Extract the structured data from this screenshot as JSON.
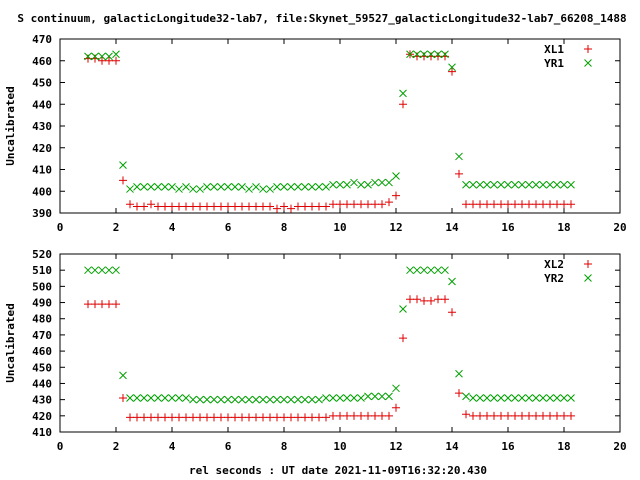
{
  "title": "S continuum, galacticLongitude32-lab7, file:Skynet_59527_galacticLongitude32-lab7_66208_1488",
  "xlabel": "rel seconds : UT date 2021-11-09T16:32:20.430",
  "colors": {
    "red": "#e00000",
    "green": "#00a000"
  },
  "chart_data": [
    {
      "type": "scatter",
      "ylabel": "Uncalibrated",
      "xlim": [
        0,
        20
      ],
      "ylim": [
        390,
        470
      ],
      "xticks": [
        0,
        2,
        4,
        6,
        8,
        10,
        12,
        14,
        16,
        18,
        20
      ],
      "yticks": [
        390,
        400,
        410,
        420,
        430,
        440,
        450,
        460,
        470
      ],
      "legend_position": "top-right",
      "series": [
        {
          "name": "XL1",
          "marker": "plus",
          "color": "#e00000",
          "x": [
            1.0,
            1.25,
            1.5,
            1.75,
            2.0,
            2.25,
            2.5,
            2.75,
            3.0,
            3.25,
            3.5,
            3.75,
            4.0,
            4.25,
            4.5,
            4.75,
            5.0,
            5.25,
            5.5,
            5.75,
            6.0,
            6.25,
            6.5,
            6.75,
            7.0,
            7.25,
            7.5,
            7.75,
            8.0,
            8.25,
            8.5,
            8.75,
            9.0,
            9.25,
            9.5,
            9.75,
            10.0,
            10.25,
            10.5,
            10.75,
            11.0,
            11.25,
            11.5,
            11.75,
            12.0,
            12.25,
            12.5,
            12.75,
            13.0,
            13.25,
            13.5,
            13.75,
            14.0,
            14.25,
            14.5,
            14.75,
            15.0,
            15.25,
            15.5,
            15.75,
            16.0,
            16.25,
            16.5,
            16.75,
            17.0,
            17.25,
            17.5,
            17.75,
            18.0,
            18.25
          ],
          "y": [
            461,
            461,
            460,
            460,
            460,
            405,
            394,
            393,
            393,
            394,
            393,
            393,
            393,
            393,
            393,
            393,
            393,
            393,
            393,
            393,
            393,
            393,
            393,
            393,
            393,
            393,
            393,
            392,
            393,
            392,
            393,
            393,
            393,
            393,
            393,
            394,
            394,
            394,
            394,
            394,
            394,
            394,
            394,
            395,
            398,
            440,
            463,
            462,
            462,
            462,
            462,
            462,
            455,
            408,
            394,
            394,
            394,
            394,
            394,
            394,
            394,
            394,
            394,
            394,
            394,
            394,
            394,
            394,
            394,
            394
          ],
          "y_fixed": [
            461,
            461,
            460,
            460,
            460,
            405,
            394,
            393,
            393,
            394,
            393,
            393,
            393,
            393,
            393,
            393,
            393,
            393,
            393,
            393,
            393,
            393,
            393,
            393,
            393,
            393,
            393,
            392,
            393,
            392,
            393,
            393,
            393,
            393,
            393,
            394,
            394,
            394,
            394,
            394,
            394,
            394,
            394,
            395,
            398,
            440,
            463,
            462,
            462,
            462,
            462,
            462,
            455,
            408,
            394,
            394,
            394,
            394,
            394,
            394,
            394,
            394,
            394,
            394,
            394,
            394,
            394,
            394,
            394,
            394
          ]
        },
        {
          "name": "YR1",
          "marker": "cross",
          "color": "#00a000",
          "x": [
            1.0,
            1.25,
            1.5,
            1.75,
            2.0,
            2.25,
            2.5,
            2.75,
            3.0,
            3.25,
            3.5,
            3.75,
            4.0,
            4.25,
            4.5,
            4.75,
            5.0,
            5.25,
            5.5,
            5.75,
            6.0,
            6.25,
            6.5,
            6.75,
            7.0,
            7.25,
            7.5,
            7.75,
            8.0,
            8.25,
            8.5,
            8.75,
            9.0,
            9.25,
            9.5,
            9.75,
            10.0,
            10.25,
            10.5,
            10.75,
            11.0,
            11.25,
            11.5,
            11.75,
            12.0,
            12.25,
            12.5,
            12.75,
            13.0,
            13.25,
            13.5,
            13.75,
            14.0,
            14.25,
            14.5,
            14.75,
            15.0,
            15.25,
            15.5,
            15.75,
            16.0,
            16.25,
            16.5,
            16.75,
            17.0,
            17.25,
            17.5,
            17.75,
            18.0,
            18.25
          ],
          "y": [
            462,
            462,
            462,
            462,
            463,
            412,
            401,
            402,
            402,
            402,
            402,
            402,
            402,
            401,
            402,
            401,
            401,
            402,
            402,
            402,
            402,
            402,
            402,
            401,
            402,
            401,
            401,
            402,
            402,
            402,
            402,
            402,
            402,
            402,
            402,
            403,
            403,
            403,
            404,
            403,
            403,
            404,
            404,
            404,
            407,
            445,
            463,
            463,
            463,
            463,
            463,
            463,
            457,
            416,
            403,
            403,
            403,
            403,
            403,
            403,
            403,
            403,
            403,
            403,
            403,
            403,
            403,
            403,
            403,
            403
          ]
        }
      ]
    },
    {
      "type": "scatter",
      "ylabel": "Uncalibrated",
      "xlim": [
        0,
        20
      ],
      "ylim": [
        410,
        520
      ],
      "xticks": [
        0,
        2,
        4,
        6,
        8,
        10,
        12,
        14,
        16,
        18,
        20
      ],
      "yticks": [
        410,
        420,
        430,
        440,
        450,
        460,
        470,
        480,
        490,
        500,
        510,
        520
      ],
      "legend_position": "top-right",
      "series": [
        {
          "name": "XL2",
          "marker": "plus",
          "color": "#e00000",
          "x": [
            1.0,
            1.25,
            1.5,
            1.75,
            2.0,
            2.25,
            2.5,
            2.75,
            3.0,
            3.25,
            3.5,
            3.75,
            4.0,
            4.25,
            4.5,
            4.75,
            5.0,
            5.25,
            5.5,
            5.75,
            6.0,
            6.25,
            6.5,
            6.75,
            7.0,
            7.25,
            7.5,
            7.75,
            8.0,
            8.25,
            8.5,
            8.75,
            9.0,
            9.25,
            9.5,
            9.75,
            10.0,
            10.25,
            10.5,
            10.75,
            11.0,
            11.25,
            11.5,
            11.75,
            12.0,
            12.25,
            12.5,
            12.75,
            13.0,
            13.25,
            13.5,
            13.75,
            14.0,
            14.25,
            14.5,
            14.75,
            15.0,
            15.25,
            15.5,
            15.75,
            16.0,
            16.25,
            16.5,
            16.75,
            17.0,
            17.25,
            17.5,
            17.75,
            18.0,
            18.25
          ],
          "y": [
            489,
            489,
            489,
            489,
            489,
            431,
            419,
            419,
            419,
            419,
            419,
            419,
            419,
            419,
            419,
            419,
            419,
            419,
            419,
            419,
            419,
            419,
            419,
            419,
            419,
            419,
            419,
            419,
            419,
            419,
            419,
            419,
            419,
            419,
            419,
            420,
            420,
            420,
            420,
            420,
            420,
            420,
            420,
            420,
            425,
            468,
            492,
            492,
            491,
            491,
            492,
            492,
            484,
            434,
            421,
            420,
            420,
            420,
            420,
            420,
            420,
            420,
            420,
            420,
            420,
            420,
            420,
            420,
            420,
            420
          ]
        },
        {
          "name": "YR2",
          "marker": "cross",
          "color": "#00a000",
          "x": [
            1.0,
            1.25,
            1.5,
            1.75,
            2.0,
            2.25,
            2.5,
            2.75,
            3.0,
            3.25,
            3.5,
            3.75,
            4.0,
            4.25,
            4.5,
            4.75,
            5.0,
            5.25,
            5.5,
            5.75,
            6.0,
            6.25,
            6.5,
            6.75,
            7.0,
            7.25,
            7.5,
            7.75,
            8.0,
            8.25,
            8.5,
            8.75,
            9.0,
            9.25,
            9.5,
            9.75,
            10.0,
            10.25,
            10.5,
            10.75,
            11.0,
            11.25,
            11.5,
            11.75,
            12.0,
            12.25,
            12.5,
            12.75,
            13.0,
            13.25,
            13.5,
            13.75,
            14.0,
            14.25,
            14.5,
            14.75,
            15.0,
            15.25,
            15.5,
            15.75,
            16.0,
            16.25,
            16.5,
            16.75,
            17.0,
            17.25,
            17.5,
            17.75,
            18.0,
            18.25
          ],
          "y": [
            510,
            510,
            510,
            510,
            510,
            445,
            431,
            431,
            431,
            431,
            431,
            431,
            431,
            431,
            431,
            430,
            430,
            430,
            430,
            430,
            430,
            430,
            430,
            430,
            430,
            430,
            430,
            430,
            430,
            430,
            430,
            430,
            430,
            430,
            431,
            431,
            431,
            431,
            431,
            431,
            432,
            432,
            432,
            432,
            437,
            486,
            510,
            510,
            510,
            510,
            510,
            510,
            503,
            446,
            432,
            431,
            431,
            431,
            431,
            431,
            431,
            431,
            431,
            431,
            431,
            431,
            431,
            431,
            431,
            431
          ]
        }
      ]
    }
  ]
}
